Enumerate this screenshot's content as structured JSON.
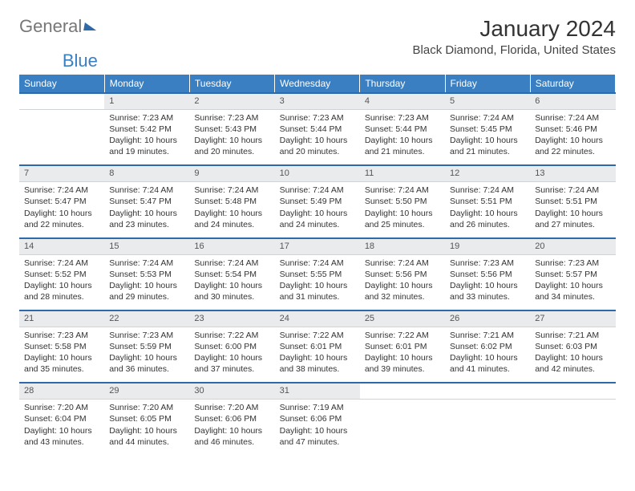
{
  "logo": {
    "part1": "General",
    "part2": "Blue"
  },
  "title": "January 2024",
  "location": "Black Diamond, Florida, United States",
  "colors": {
    "header_bg": "#3a7fc2",
    "header_text": "#ffffff",
    "daynum_bg": "#e9ebed",
    "week_border": "#2f6aa8",
    "text": "#333333"
  },
  "day_headers": [
    "Sunday",
    "Monday",
    "Tuesday",
    "Wednesday",
    "Thursday",
    "Friday",
    "Saturday"
  ],
  "layout": {
    "start_weekday": 1,
    "days_in_month": 31
  },
  "days": {
    "1": {
      "sunrise": "7:23 AM",
      "sunset": "5:42 PM",
      "daylight": "10 hours and 19 minutes."
    },
    "2": {
      "sunrise": "7:23 AM",
      "sunset": "5:43 PM",
      "daylight": "10 hours and 20 minutes."
    },
    "3": {
      "sunrise": "7:23 AM",
      "sunset": "5:44 PM",
      "daylight": "10 hours and 20 minutes."
    },
    "4": {
      "sunrise": "7:23 AM",
      "sunset": "5:44 PM",
      "daylight": "10 hours and 21 minutes."
    },
    "5": {
      "sunrise": "7:24 AM",
      "sunset": "5:45 PM",
      "daylight": "10 hours and 21 minutes."
    },
    "6": {
      "sunrise": "7:24 AM",
      "sunset": "5:46 PM",
      "daylight": "10 hours and 22 minutes."
    },
    "7": {
      "sunrise": "7:24 AM",
      "sunset": "5:47 PM",
      "daylight": "10 hours and 22 minutes."
    },
    "8": {
      "sunrise": "7:24 AM",
      "sunset": "5:47 PM",
      "daylight": "10 hours and 23 minutes."
    },
    "9": {
      "sunrise": "7:24 AM",
      "sunset": "5:48 PM",
      "daylight": "10 hours and 24 minutes."
    },
    "10": {
      "sunrise": "7:24 AM",
      "sunset": "5:49 PM",
      "daylight": "10 hours and 24 minutes."
    },
    "11": {
      "sunrise": "7:24 AM",
      "sunset": "5:50 PM",
      "daylight": "10 hours and 25 minutes."
    },
    "12": {
      "sunrise": "7:24 AM",
      "sunset": "5:51 PM",
      "daylight": "10 hours and 26 minutes."
    },
    "13": {
      "sunrise": "7:24 AM",
      "sunset": "5:51 PM",
      "daylight": "10 hours and 27 minutes."
    },
    "14": {
      "sunrise": "7:24 AM",
      "sunset": "5:52 PM",
      "daylight": "10 hours and 28 minutes."
    },
    "15": {
      "sunrise": "7:24 AM",
      "sunset": "5:53 PM",
      "daylight": "10 hours and 29 minutes."
    },
    "16": {
      "sunrise": "7:24 AM",
      "sunset": "5:54 PM",
      "daylight": "10 hours and 30 minutes."
    },
    "17": {
      "sunrise": "7:24 AM",
      "sunset": "5:55 PM",
      "daylight": "10 hours and 31 minutes."
    },
    "18": {
      "sunrise": "7:24 AM",
      "sunset": "5:56 PM",
      "daylight": "10 hours and 32 minutes."
    },
    "19": {
      "sunrise": "7:23 AM",
      "sunset": "5:56 PM",
      "daylight": "10 hours and 33 minutes."
    },
    "20": {
      "sunrise": "7:23 AM",
      "sunset": "5:57 PM",
      "daylight": "10 hours and 34 minutes."
    },
    "21": {
      "sunrise": "7:23 AM",
      "sunset": "5:58 PM",
      "daylight": "10 hours and 35 minutes."
    },
    "22": {
      "sunrise": "7:23 AM",
      "sunset": "5:59 PM",
      "daylight": "10 hours and 36 minutes."
    },
    "23": {
      "sunrise": "7:22 AM",
      "sunset": "6:00 PM",
      "daylight": "10 hours and 37 minutes."
    },
    "24": {
      "sunrise": "7:22 AM",
      "sunset": "6:01 PM",
      "daylight": "10 hours and 38 minutes."
    },
    "25": {
      "sunrise": "7:22 AM",
      "sunset": "6:01 PM",
      "daylight": "10 hours and 39 minutes."
    },
    "26": {
      "sunrise": "7:21 AM",
      "sunset": "6:02 PM",
      "daylight": "10 hours and 41 minutes."
    },
    "27": {
      "sunrise": "7:21 AM",
      "sunset": "6:03 PM",
      "daylight": "10 hours and 42 minutes."
    },
    "28": {
      "sunrise": "7:20 AM",
      "sunset": "6:04 PM",
      "daylight": "10 hours and 43 minutes."
    },
    "29": {
      "sunrise": "7:20 AM",
      "sunset": "6:05 PM",
      "daylight": "10 hours and 44 minutes."
    },
    "30": {
      "sunrise": "7:20 AM",
      "sunset": "6:06 PM",
      "daylight": "10 hours and 46 minutes."
    },
    "31": {
      "sunrise": "7:19 AM",
      "sunset": "6:06 PM",
      "daylight": "10 hours and 47 minutes."
    }
  },
  "labels": {
    "sunrise_prefix": "Sunrise: ",
    "sunset_prefix": "Sunset: ",
    "daylight_prefix": "Daylight: "
  }
}
